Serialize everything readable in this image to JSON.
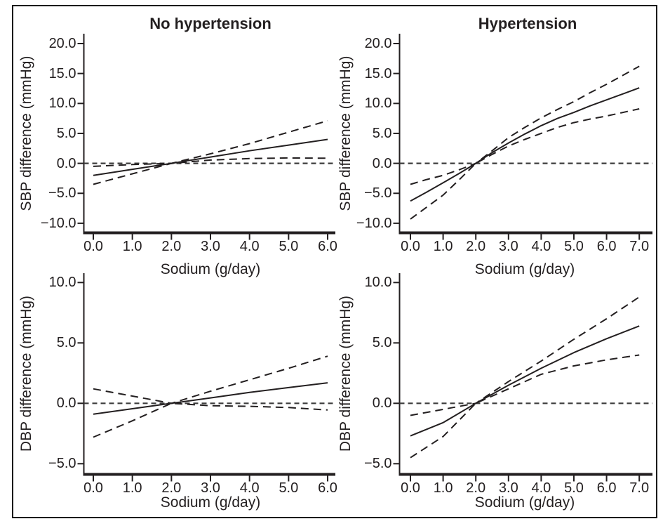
{
  "figure": {
    "background": "#ffffff",
    "border_color": "#1a1a1a",
    "line_color": "#231f20",
    "reference_line_color": "#3d3d3d"
  },
  "chart_data": [
    {
      "id": "sbp-no-hypertension",
      "type": "line",
      "title": "No hypertension",
      "ylabel": "SBP difference (mmHg)",
      "xlabel": "Sodium (g/day)",
      "xlim": [
        0,
        6
      ],
      "ylim": [
        -10,
        20
      ],
      "xtick_labels": [
        "0.0",
        "1.0",
        "2.0",
        "3.0",
        "4.0",
        "5.0",
        "6.0"
      ],
      "ytick_labels": [
        "20.0",
        "15.0",
        "10.0",
        "5.0",
        "0.0",
        "−5.0",
        "−10.0"
      ],
      "reference_line_y": 0,
      "legend": "off",
      "grid": "off",
      "series": [
        {
          "name": "estimate",
          "line": "solid",
          "points": [
            [
              0,
              -2.0
            ],
            [
              1,
              -1.0
            ],
            [
              2,
              0
            ],
            [
              3,
              1.05
            ],
            [
              4,
              2.1
            ],
            [
              5,
              3.05
            ],
            [
              6,
              4.0
            ]
          ]
        },
        {
          "name": "upper-95ci",
          "line": "dashed",
          "points": [
            [
              0,
              -0.5
            ],
            [
              1,
              -0.2
            ],
            [
              2,
              0
            ],
            [
              3,
              1.6
            ],
            [
              4,
              3.3
            ],
            [
              5,
              5.2
            ],
            [
              6,
              7.1
            ]
          ]
        },
        {
          "name": "lower-95ci",
          "line": "dashed",
          "points": [
            [
              0,
              -3.5
            ],
            [
              1,
              -1.75
            ],
            [
              2,
              0
            ],
            [
              3,
              0.55
            ],
            [
              4,
              0.8
            ],
            [
              5,
              0.9
            ],
            [
              6,
              0.85
            ]
          ]
        }
      ]
    },
    {
      "id": "sbp-hypertension",
      "type": "line",
      "title": "Hypertension",
      "ylabel": "SBP difference (mmHg)",
      "xlabel": "Sodium (g/day)",
      "xlim": [
        0,
        7
      ],
      "ylim": [
        -10,
        20
      ],
      "xtick_labels": [
        "0.0",
        "1.0",
        "2.0",
        "3.0",
        "4.0",
        "5.0",
        "6.0",
        "7.0"
      ],
      "ytick_labels": [
        "20.0",
        "15.0",
        "10.0",
        "5.0",
        "0.0",
        "−5.0",
        "−10.0"
      ],
      "reference_line_y": 0,
      "legend": "off",
      "grid": "off",
      "series": [
        {
          "name": "estimate",
          "line": "solid",
          "points": [
            [
              0,
              -6.3
            ],
            [
              0.5,
              -4.8
            ],
            [
              1,
              -3.25
            ],
            [
              1.5,
              -1.65
            ],
            [
              2,
              0
            ],
            [
              2.5,
              1.8
            ],
            [
              3,
              3.4
            ],
            [
              3.5,
              4.9
            ],
            [
              4,
              6.3
            ],
            [
              4.5,
              7.5
            ],
            [
              5,
              8.5
            ],
            [
              5.5,
              9.6
            ],
            [
              6,
              10.6
            ],
            [
              6.5,
              11.6
            ],
            [
              7,
              12.6
            ]
          ]
        },
        {
          "name": "upper-95ci",
          "line": "dashed",
          "points": [
            [
              0,
              -3.5
            ],
            [
              0.5,
              -2.7
            ],
            [
              1,
              -2.0
            ],
            [
              1.5,
              -1.05
            ],
            [
              2,
              0
            ],
            [
              2.5,
              2.1
            ],
            [
              3,
              4.3
            ],
            [
              3.5,
              6.0
            ],
            [
              4,
              7.6
            ],
            [
              4.5,
              9.0
            ],
            [
              5,
              10.3
            ],
            [
              5.5,
              11.8
            ],
            [
              6,
              13.2
            ],
            [
              6.5,
              14.7
            ],
            [
              7,
              16.2
            ]
          ]
        },
        {
          "name": "lower-95ci",
          "line": "dashed",
          "points": [
            [
              0,
              -9.3
            ],
            [
              0.5,
              -7.3
            ],
            [
              1,
              -5.3
            ],
            [
              1.5,
              -2.7
            ],
            [
              2,
              0
            ],
            [
              2.5,
              1.5
            ],
            [
              3,
              2.9
            ],
            [
              3.5,
              4.0
            ],
            [
              4,
              5.0
            ],
            [
              4.5,
              6.0
            ],
            [
              5,
              6.8
            ],
            [
              5.5,
              7.4
            ],
            [
              6,
              7.9
            ],
            [
              6.5,
              8.5
            ],
            [
              7,
              9.1
            ]
          ]
        }
      ]
    },
    {
      "id": "dbp-no-hypertension",
      "type": "line",
      "title": "",
      "ylabel": "DBP difference (mmHg)",
      "xlabel": "Sodium (g/day)",
      "xlim": [
        0,
        6
      ],
      "ylim": [
        -5,
        10
      ],
      "xtick_labels": [
        "0.0",
        "1.0",
        "2.0",
        "3.0",
        "4.0",
        "5.0",
        "6.0"
      ],
      "ytick_labels": [
        "10.0",
        "5.0",
        "0.0",
        "−5.0"
      ],
      "reference_line_y": 0,
      "legend": "off",
      "grid": "off",
      "series": [
        {
          "name": "estimate",
          "line": "solid",
          "points": [
            [
              0,
              -0.9
            ],
            [
              1,
              -0.45
            ],
            [
              2,
              0
            ],
            [
              3,
              0.45
            ],
            [
              4,
              0.9
            ],
            [
              5,
              1.3
            ],
            [
              6,
              1.7
            ]
          ]
        },
        {
          "name": "upper-95ci",
          "line": "dashed",
          "points": [
            [
              0,
              1.2
            ],
            [
              1,
              0.6
            ],
            [
              2,
              0
            ],
            [
              3,
              1.0
            ],
            [
              4,
              1.95
            ],
            [
              5,
              2.9
            ],
            [
              6,
              3.9
            ]
          ]
        },
        {
          "name": "lower-95ci",
          "line": "dashed",
          "points": [
            [
              0,
              -2.8
            ],
            [
              1,
              -1.45
            ],
            [
              2,
              0
            ],
            [
              2.5,
              -0.1
            ],
            [
              3,
              -0.2
            ],
            [
              4,
              -0.25
            ],
            [
              5,
              -0.35
            ],
            [
              6,
              -0.55
            ]
          ]
        }
      ]
    },
    {
      "id": "dbp-hypertension",
      "type": "line",
      "title": "",
      "ylabel": "DBP difference (mmHg)",
      "xlabel": "Sodium (g/day)",
      "xlim": [
        0,
        7
      ],
      "ylim": [
        -5,
        10
      ],
      "xtick_labels": [
        "0.0",
        "1.0",
        "2.0",
        "3.0",
        "4.0",
        "5.0",
        "6.0",
        "7.0"
      ],
      "ytick_labels": [
        "10.0",
        "5.0",
        "0.0",
        "−5.0"
      ],
      "reference_line_y": 0,
      "legend": "off",
      "grid": "off",
      "series": [
        {
          "name": "estimate",
          "line": "solid",
          "points": [
            [
              0,
              -2.7
            ],
            [
              1,
              -1.6
            ],
            [
              2,
              0
            ],
            [
              3,
              1.5
            ],
            [
              4,
              2.9
            ],
            [
              5,
              4.2
            ],
            [
              6,
              5.35
            ],
            [
              7,
              6.4
            ]
          ]
        },
        {
          "name": "upper-95ci",
          "line": "dashed",
          "points": [
            [
              0,
              -1.0
            ],
            [
              1,
              -0.5
            ],
            [
              2,
              0
            ],
            [
              3,
              1.8
            ],
            [
              4,
              3.5
            ],
            [
              5,
              5.3
            ],
            [
              6,
              7.0
            ],
            [
              7,
              8.8
            ]
          ]
        },
        {
          "name": "lower-95ci",
          "line": "dashed",
          "points": [
            [
              0,
              -4.5
            ],
            [
              1,
              -2.75
            ],
            [
              2,
              0
            ],
            [
              3,
              1.2
            ],
            [
              4,
              2.4
            ],
            [
              5,
              3.1
            ],
            [
              6,
              3.6
            ],
            [
              7,
              4.0
            ]
          ]
        }
      ]
    }
  ]
}
